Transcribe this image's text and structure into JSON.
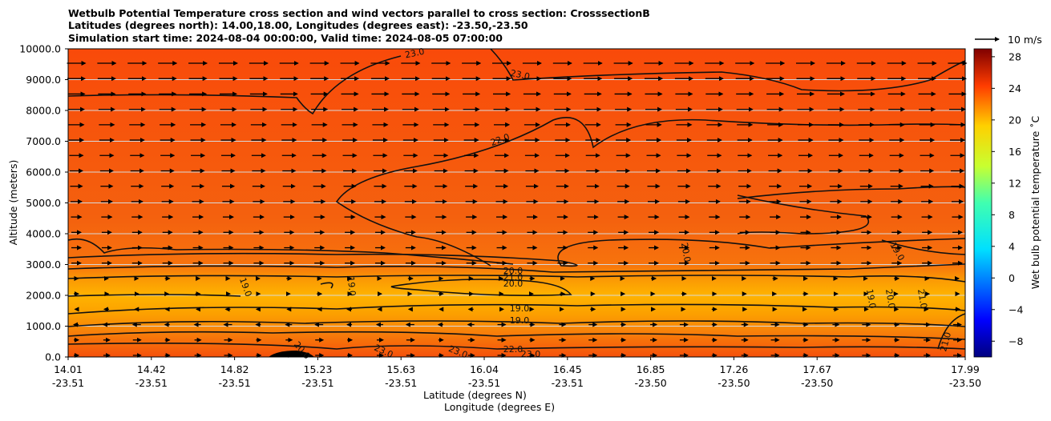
{
  "title": {
    "line1": "Wetbulb Potential Temperature cross section and wind vectors parallel to cross section: CrosssectionB",
    "line2": "Latitudes (degrees north): 14.00,18.00, Longitudes (degrees east): -23.50,-23.50",
    "line3": "Simulation start time: 2024-08-04 00:00:00, Valid time: 2024-08-05 07:00:00"
  },
  "chart_data": {
    "type": "contour",
    "title": "Wetbulb Potential Temperature cross section and wind vectors parallel to cross section: CrosssectionB",
    "ylabel": "Altitude (meters)",
    "xlabel_lat": "Latitude (degrees N)",
    "xlabel_lon": "Longitude (degrees E)",
    "ylim": [
      0,
      10000
    ],
    "yticks": [
      "0.0",
      "1000.0",
      "2000.0",
      "3000.0",
      "4000.0",
      "5000.0",
      "6000.0",
      "7000.0",
      "8000.0",
      "9000.0",
      "10000.0"
    ],
    "xticks": [
      {
        "lat": "14.01",
        "lon": "-23.51"
      },
      {
        "lat": "14.42",
        "lon": "-23.51"
      },
      {
        "lat": "14.82",
        "lon": "-23.51"
      },
      {
        "lat": "15.23",
        "lon": "-23.51"
      },
      {
        "lat": "15.63",
        "lon": "-23.51"
      },
      {
        "lat": "16.04",
        "lon": "-23.51"
      },
      {
        "lat": "16.45",
        "lon": "-23.51"
      },
      {
        "lat": "16.85",
        "lon": "-23.50"
      },
      {
        "lat": "17.26",
        "lon": "-23.50"
      },
      {
        "lat": "17.67",
        "lon": "-23.50"
      },
      {
        "lat": "17.99",
        "lon": "-23.50"
      }
    ],
    "contour_labels": [
      "23.0",
      "23.0",
      "22.0",
      "20.0",
      "21.0",
      "20.0",
      "19.0",
      "19.0",
      "19.0",
      "20.0",
      "21.0",
      "22.0",
      "23.0",
      "23.0",
      "23.0",
      "20.0",
      "20.0",
      "19.0",
      "19.0",
      "19.0",
      "21.0"
    ],
    "colorbar": {
      "label": "Wet bulb potential temperature ˚C",
      "ticks": [
        "28",
        "24",
        "20",
        "16",
        "12",
        "8",
        "4",
        "0",
        "−4",
        "−8"
      ],
      "range": [
        -10,
        29
      ]
    },
    "quiver_key": "10 m/s"
  },
  "colors": {
    "background": "#ffffff",
    "field_high": "#f45a0c",
    "field_mid": "#fb8c00",
    "field_low": "#ffb300"
  }
}
